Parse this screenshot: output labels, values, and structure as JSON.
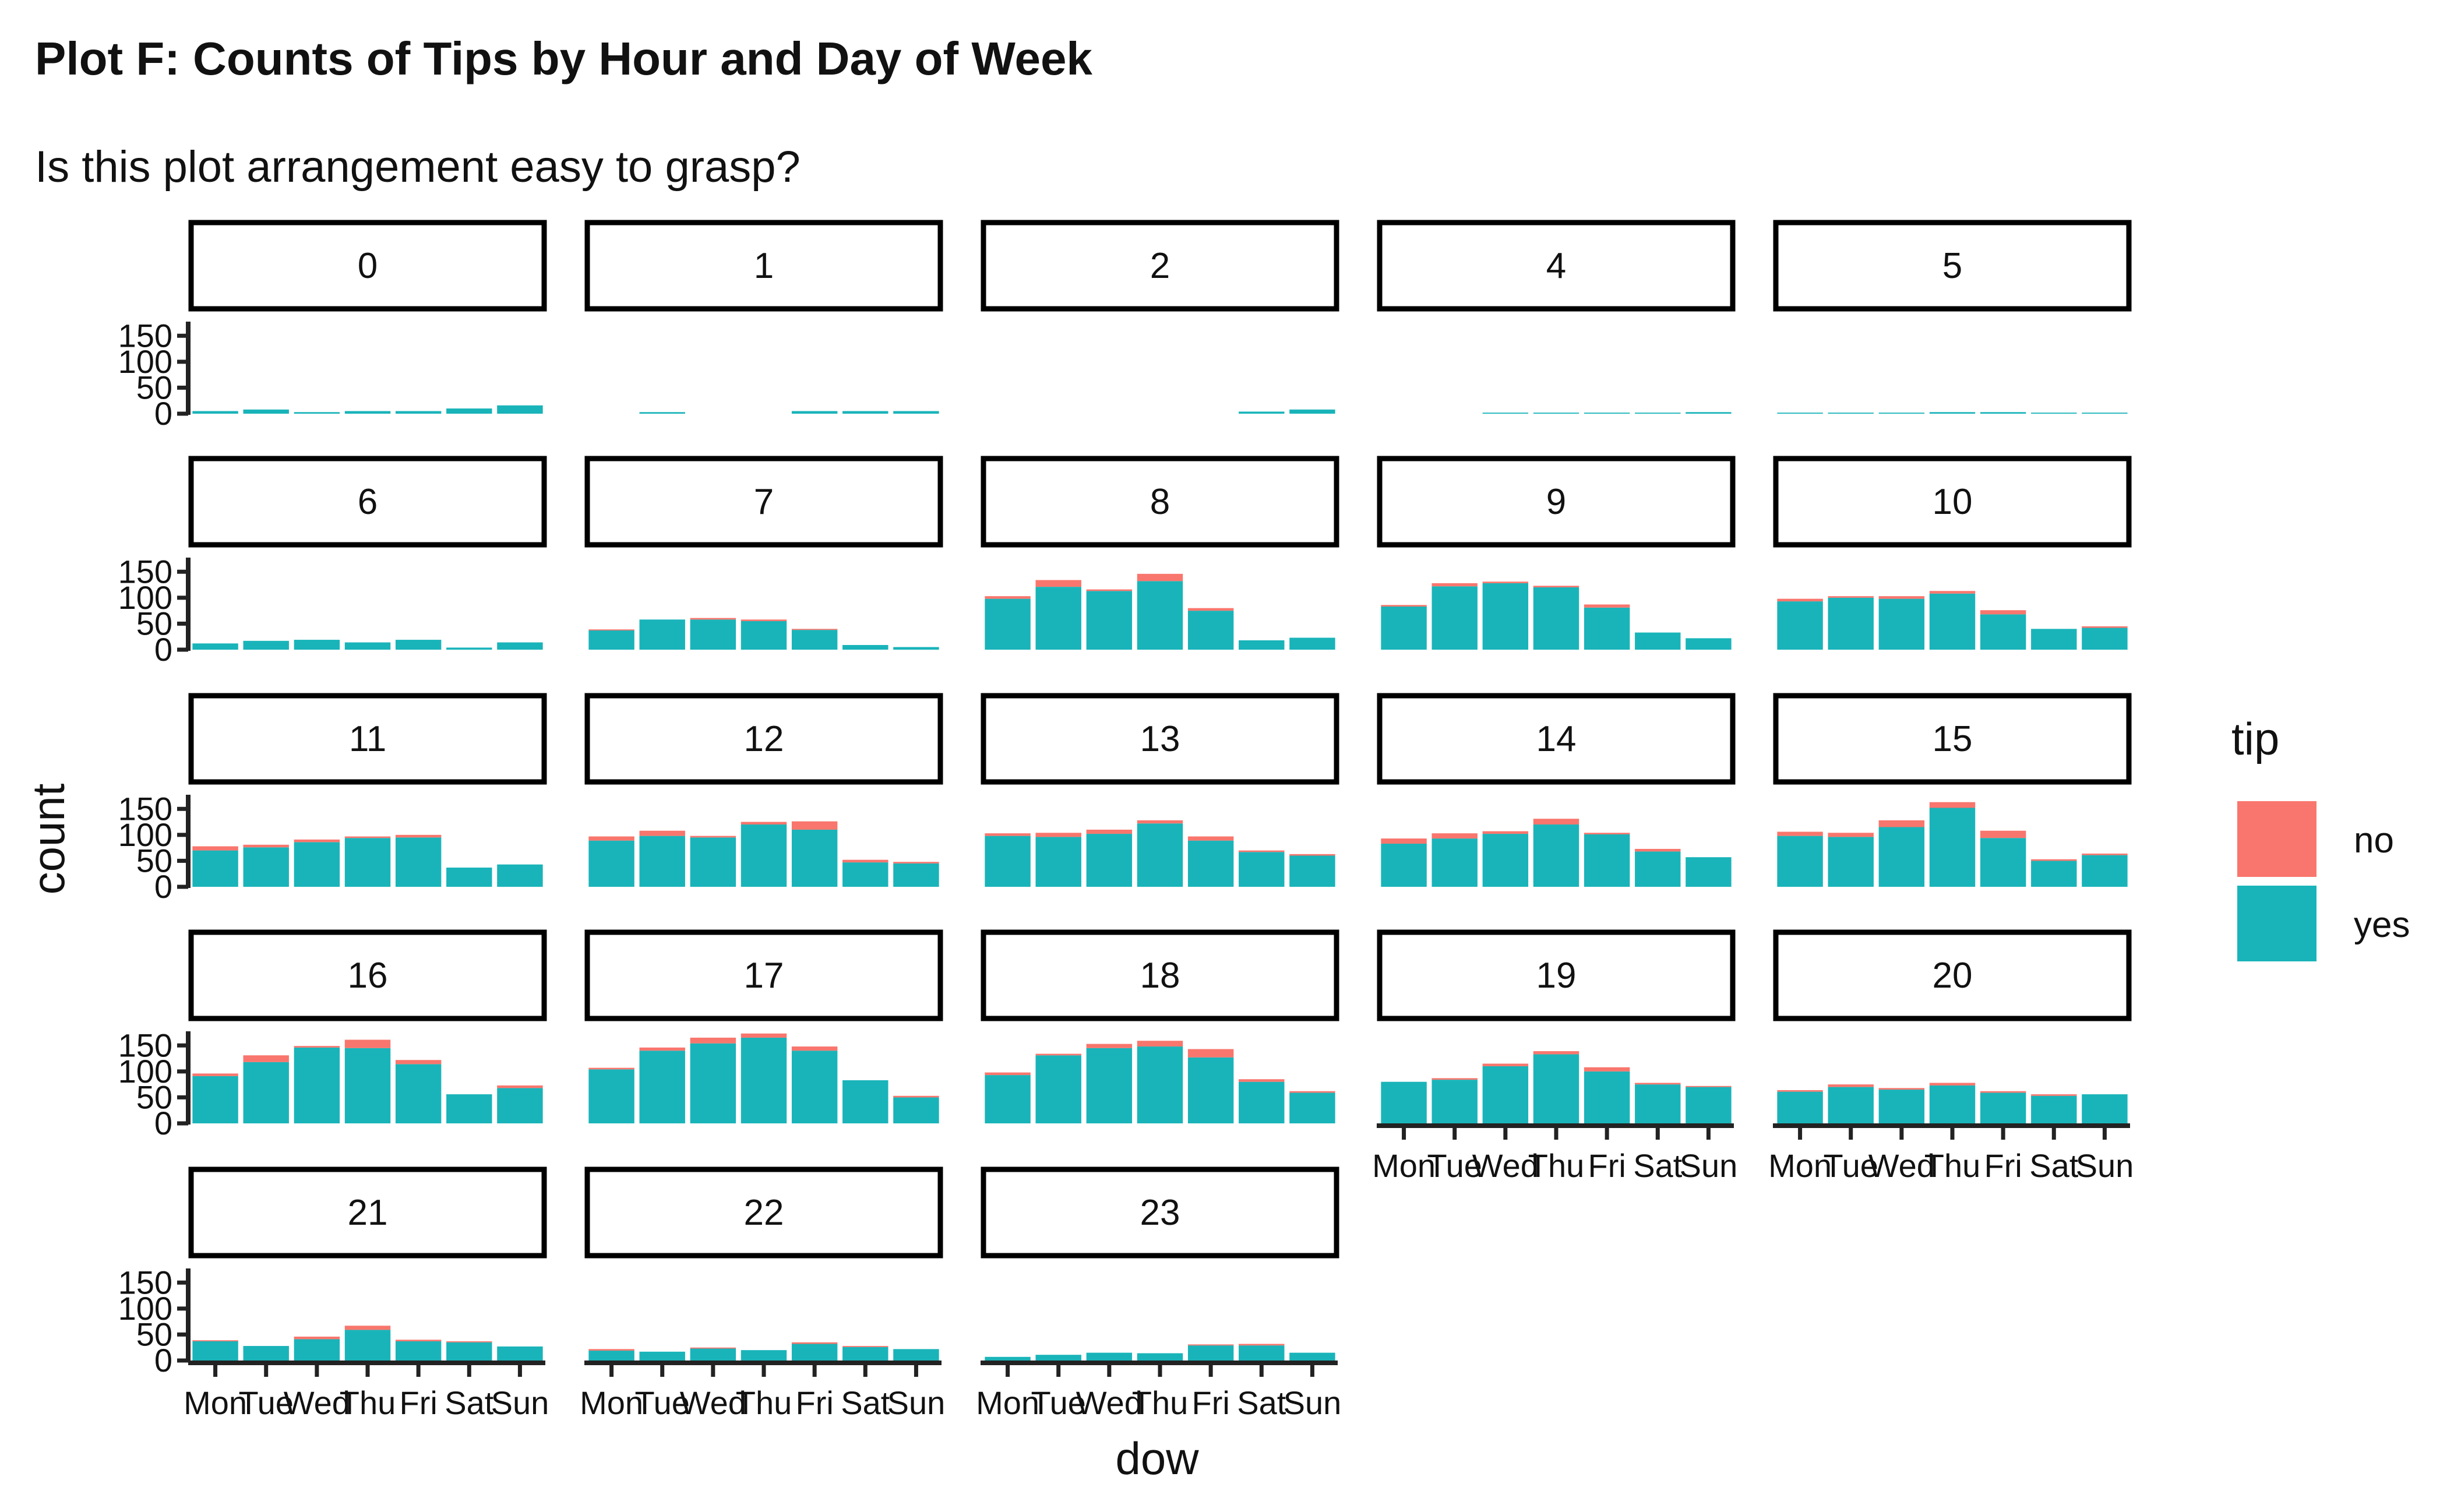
{
  "chart_data": {
    "type": "bar",
    "stacked": true,
    "title": "Plot F: Counts of Tips by Hour and Day of Week",
    "subtitle": "Is this plot arrangement easy to grasp?",
    "xlabel": "dow",
    "ylabel": "count",
    "ylim": [
      0,
      175
    ],
    "yticks": [
      0,
      50,
      100,
      150
    ],
    "categories": [
      "Mon",
      "Tue",
      "Wed",
      "Thu",
      "Fri",
      "Sat",
      "Sun"
    ],
    "legend": {
      "title": "tip",
      "position": "right"
    },
    "series_order": [
      "no",
      "yes"
    ],
    "colors": {
      "no": "#F8766D",
      "yes": "#19B4B9"
    },
    "facets": [
      {
        "label": "0",
        "yes": [
          5,
          8,
          3,
          5,
          5,
          10,
          16
        ],
        "no": [
          0,
          0,
          0,
          0,
          0,
          0,
          0
        ]
      },
      {
        "label": "1",
        "yes": [
          0,
          3,
          0,
          0,
          5,
          5,
          5
        ],
        "no": [
          0,
          0,
          0,
          0,
          0,
          0,
          0
        ]
      },
      {
        "label": "2",
        "yes": [
          0,
          0,
          0,
          0,
          0,
          4,
          8
        ],
        "no": [
          0,
          0,
          0,
          0,
          0,
          0,
          0
        ]
      },
      {
        "label": "4",
        "yes": [
          0,
          0,
          2,
          2,
          2,
          2,
          3
        ],
        "no": [
          0,
          0,
          0,
          0,
          0,
          0,
          0
        ]
      },
      {
        "label": "5",
        "yes": [
          2,
          2,
          2,
          3,
          3,
          2,
          2
        ],
        "no": [
          0,
          0,
          0,
          0,
          0,
          0,
          0
        ]
      },
      {
        "label": "6",
        "yes": [
          12,
          17,
          19,
          14,
          19,
          4,
          14
        ],
        "no": [
          0,
          0,
          0,
          0,
          0,
          0,
          0
        ]
      },
      {
        "label": "7",
        "yes": [
          37,
          58,
          58,
          55,
          38,
          9,
          5
        ],
        "no": [
          2,
          0,
          3,
          3,
          2,
          0,
          0
        ]
      },
      {
        "label": "8",
        "yes": [
          98,
          121,
          113,
          132,
          75,
          18,
          23
        ],
        "no": [
          5,
          13,
          3,
          14,
          5,
          0,
          0
        ]
      },
      {
        "label": "9",
        "yes": [
          83,
          122,
          128,
          120,
          81,
          33,
          22
        ],
        "no": [
          3,
          6,
          3,
          3,
          6,
          0,
          0
        ]
      },
      {
        "label": "10",
        "yes": [
          93,
          100,
          98,
          108,
          68,
          40,
          42
        ],
        "no": [
          5,
          3,
          5,
          5,
          8,
          0,
          3
        ]
      },
      {
        "label": "11",
        "yes": [
          70,
          76,
          86,
          94,
          95,
          37,
          43
        ],
        "no": [
          8,
          5,
          5,
          3,
          5,
          0,
          0
        ]
      },
      {
        "label": "12",
        "yes": [
          89,
          98,
          95,
          120,
          110,
          47,
          45
        ],
        "no": [
          8,
          10,
          3,
          5,
          16,
          5,
          3
        ]
      },
      {
        "label": "13",
        "yes": [
          98,
          96,
          102,
          122,
          89,
          67,
          60
        ],
        "no": [
          5,
          8,
          8,
          6,
          8,
          3,
          3
        ]
      },
      {
        "label": "14",
        "yes": [
          83,
          93,
          102,
          120,
          101,
          68,
          57
        ],
        "no": [
          10,
          10,
          5,
          11,
          3,
          5,
          0
        ]
      },
      {
        "label": "15",
        "yes": [
          98,
          96,
          115,
          152,
          94,
          50,
          61
        ],
        "no": [
          8,
          8,
          13,
          11,
          14,
          3,
          3
        ]
      },
      {
        "label": "16",
        "yes": [
          91,
          118,
          146,
          145,
          114,
          56,
          68
        ],
        "no": [
          5,
          13,
          3,
          16,
          8,
          0,
          5
        ]
      },
      {
        "label": "17",
        "yes": [
          104,
          140,
          154,
          165,
          140,
          83,
          50
        ],
        "no": [
          3,
          6,
          11,
          8,
          8,
          0,
          3
        ]
      },
      {
        "label": "18",
        "yes": [
          93,
          131,
          145,
          148,
          127,
          80,
          59
        ],
        "no": [
          5,
          3,
          8,
          11,
          16,
          5,
          3
        ]
      },
      {
        "label": "19",
        "yes": [
          80,
          84,
          110,
          133,
          100,
          75,
          70
        ],
        "no": [
          0,
          3,
          5,
          6,
          8,
          3,
          2
        ]
      },
      {
        "label": "20",
        "yes": [
          61,
          70,
          65,
          73,
          59,
          53,
          56
        ],
        "no": [
          3,
          5,
          3,
          5,
          3,
          3,
          0
        ]
      },
      {
        "label": "21",
        "yes": [
          37,
          28,
          41,
          59,
          37,
          35,
          27
        ],
        "no": [
          2,
          0,
          5,
          8,
          3,
          2,
          0
        ]
      },
      {
        "label": "22",
        "yes": [
          19,
          17,
          23,
          20,
          32,
          26,
          22
        ],
        "no": [
          3,
          0,
          2,
          0,
          3,
          2,
          0
        ]
      },
      {
        "label": "23",
        "yes": [
          7,
          11,
          15,
          14,
          29,
          29,
          15
        ],
        "no": [
          0,
          0,
          0,
          0,
          2,
          3,
          0
        ]
      }
    ]
  }
}
